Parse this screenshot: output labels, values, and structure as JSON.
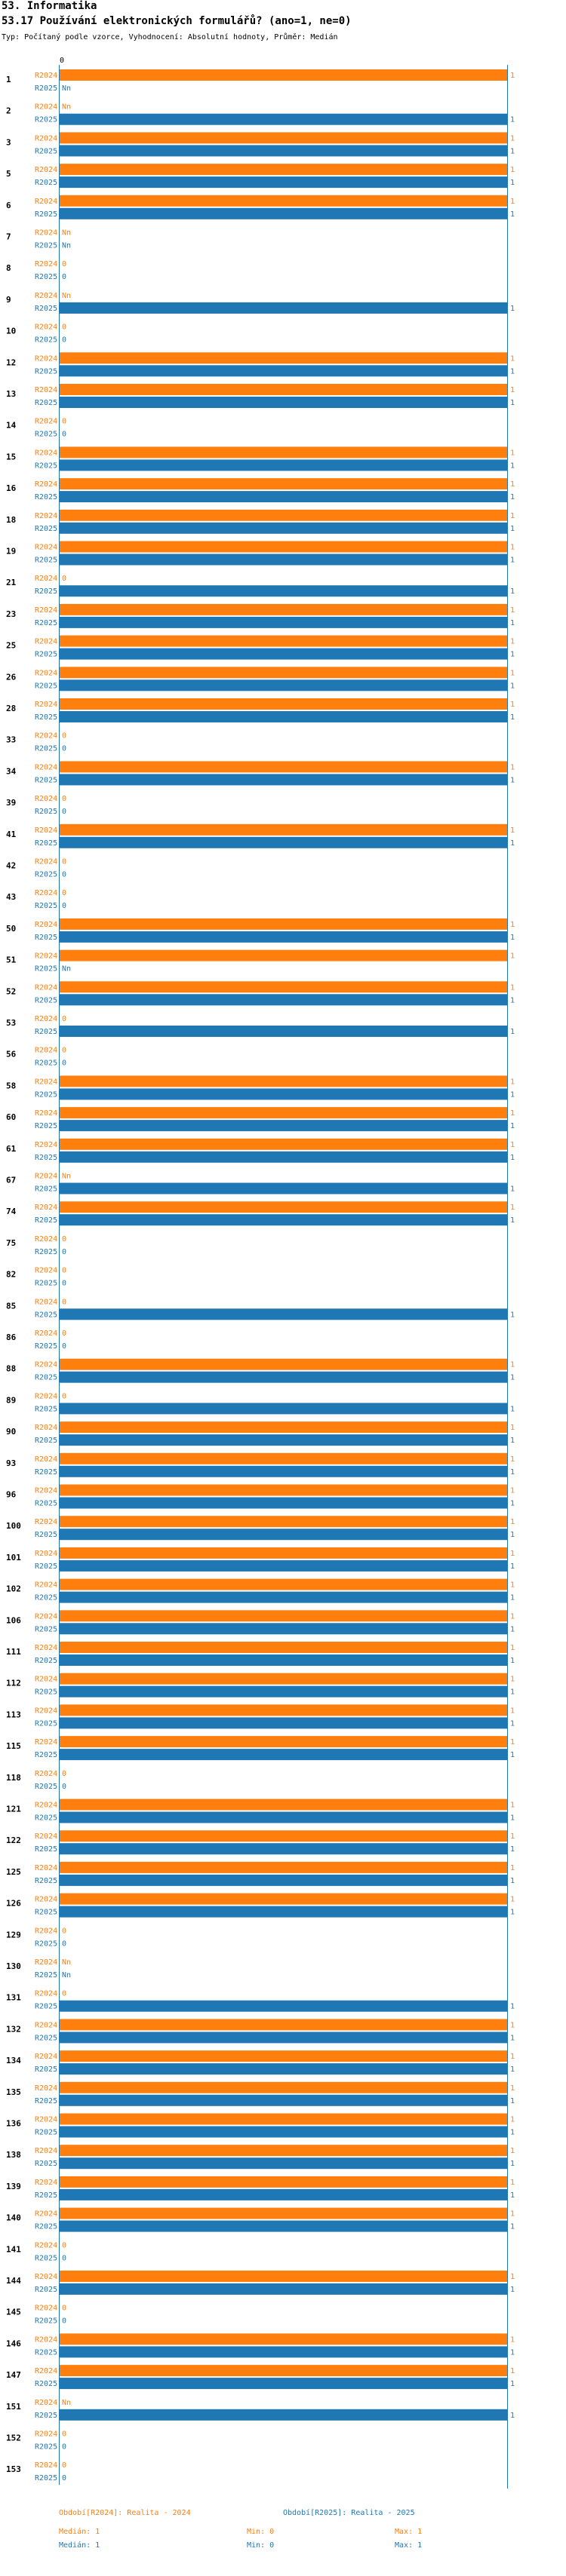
{
  "header": {
    "section": "53. Informatika",
    "question": "53.17 Používání elektronických formulářů? (ano=1, ne=0)",
    "meta": "Typ: Počítaný podle vzorce, Vyhodnocení: Absolutní hodnoty, Průměr: Medián"
  },
  "colors": {
    "s2024": "#ff7f0e",
    "s2025": "#1f77b4"
  },
  "chart_data": {
    "type": "bar",
    "orientation": "horizontal",
    "axis_ticks": [
      "0"
    ],
    "xlim": [
      0,
      1
    ],
    "series_names": [
      "R2024",
      "R2025"
    ],
    "categories": [
      "1",
      "2",
      "3",
      "5",
      "6",
      "7",
      "8",
      "9",
      "10",
      "12",
      "13",
      "14",
      "15",
      "16",
      "18",
      "19",
      "21",
      "23",
      "25",
      "26",
      "28",
      "33",
      "34",
      "39",
      "41",
      "42",
      "43",
      "50",
      "51",
      "52",
      "53",
      "56",
      "58",
      "60",
      "61",
      "67",
      "74",
      "75",
      "82",
      "85",
      "86",
      "88",
      "89",
      "90",
      "93",
      "96",
      "100",
      "101",
      "102",
      "106",
      "111",
      "112",
      "113",
      "115",
      "118",
      "121",
      "122",
      "125",
      "126",
      "129",
      "130",
      "131",
      "132",
      "134",
      "135",
      "136",
      "138",
      "139",
      "140",
      "141",
      "144",
      "145",
      "146",
      "147",
      "151",
      "152",
      "153"
    ],
    "values_2024": [
      1,
      null,
      1,
      1,
      1,
      null,
      0,
      null,
      0,
      1,
      1,
      0,
      1,
      1,
      1,
      1,
      0,
      1,
      1,
      1,
      1,
      0,
      1,
      0,
      1,
      0,
      0,
      1,
      1,
      1,
      0,
      0,
      1,
      1,
      1,
      null,
      1,
      0,
      0,
      0,
      0,
      1,
      0,
      1,
      1,
      1,
      1,
      1,
      1,
      1,
      1,
      1,
      1,
      1,
      0,
      1,
      1,
      1,
      1,
      0,
      null,
      0,
      1,
      1,
      1,
      1,
      1,
      1,
      1,
      0,
      1,
      0,
      1,
      1,
      null,
      0,
      0
    ],
    "values_2025": [
      null,
      1,
      1,
      1,
      1,
      null,
      0,
      1,
      0,
      1,
      1,
      0,
      1,
      1,
      1,
      1,
      1,
      1,
      1,
      1,
      1,
      0,
      1,
      0,
      1,
      0,
      0,
      1,
      null,
      1,
      1,
      0,
      1,
      1,
      1,
      1,
      1,
      0,
      0,
      1,
      0,
      1,
      1,
      1,
      1,
      1,
      1,
      1,
      1,
      1,
      1,
      1,
      1,
      1,
      0,
      1,
      1,
      1,
      1,
      0,
      null,
      1,
      1,
      1,
      1,
      1,
      1,
      1,
      1,
      0,
      1,
      0,
      1,
      1,
      1,
      0,
      0
    ]
  },
  "legend": {
    "s2024": {
      "label": "Období[R2024]: Realita - 2024",
      "median": "Medián: 1",
      "min": "Min: 0",
      "max": "Max: 1"
    },
    "s2025": {
      "label": "Období[R2025]: Realita - 2025",
      "median": "Medián: 1",
      "min": "Min: 0",
      "max": "Max: 1"
    }
  }
}
